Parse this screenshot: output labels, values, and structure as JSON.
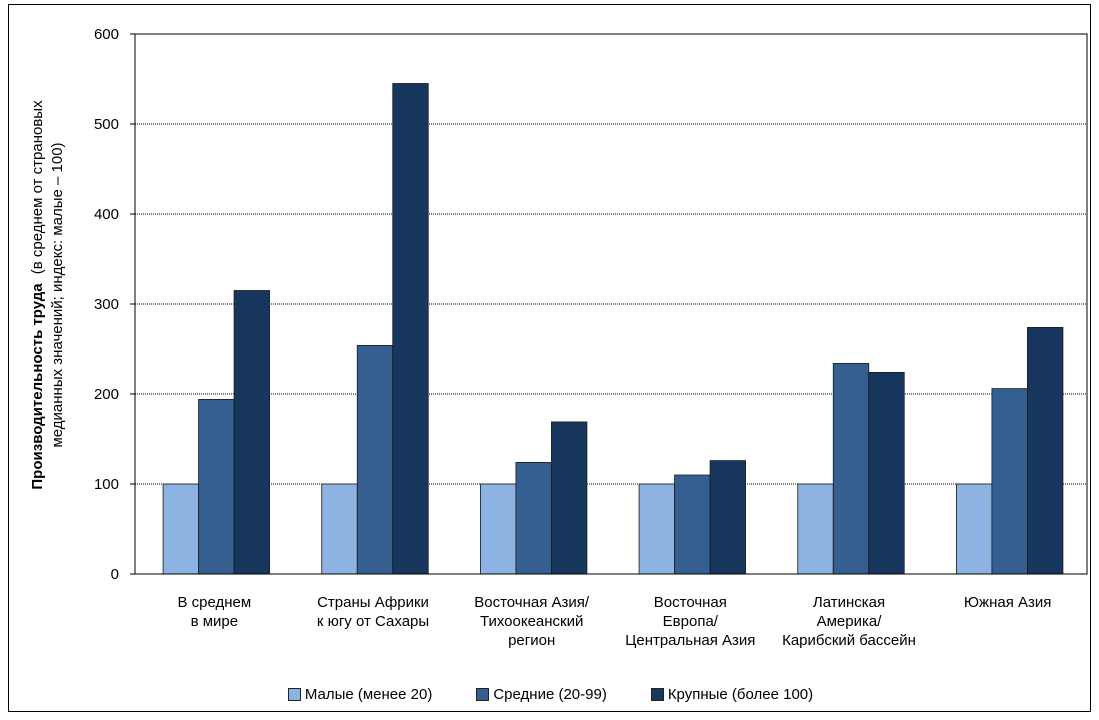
{
  "chart_data": {
    "type": "bar",
    "ylabel_bold": "Производительность труда",
    "ylabel_rest_line1": "(в среднем от страновых",
    "ylabel_line2": "медианных значений; индекс: малые – 100)",
    "ylim": [
      0,
      600
    ],
    "yticks": [
      0,
      100,
      200,
      300,
      400,
      500,
      600
    ],
    "grid": true,
    "legend_position": "bottom",
    "categories": [
      [
        "В среднем",
        "в мире"
      ],
      [
        "Страны Африки",
        "к югу от Сахары"
      ],
      [
        "Восточная Азия/",
        "Тихоокеанский",
        "регион"
      ],
      [
        "Восточная",
        "Европа/",
        "Центральная Азия"
      ],
      [
        "Латинская",
        "Америка/",
        "Карибский бассейн"
      ],
      [
        "Южная Азия"
      ]
    ],
    "series": [
      {
        "name": "Малые (менее 20)",
        "color": "#8db3e2",
        "values": [
          100,
          100,
          100,
          100,
          100,
          100
        ]
      },
      {
        "name": "Средние (20-99)",
        "color": "#365f91",
        "values": [
          194,
          254,
          124,
          110,
          234,
          206
        ]
      },
      {
        "name": "Крупные (более 100)",
        "color": "#17375e",
        "values": [
          315,
          545,
          169,
          126,
          224,
          274
        ]
      }
    ]
  }
}
